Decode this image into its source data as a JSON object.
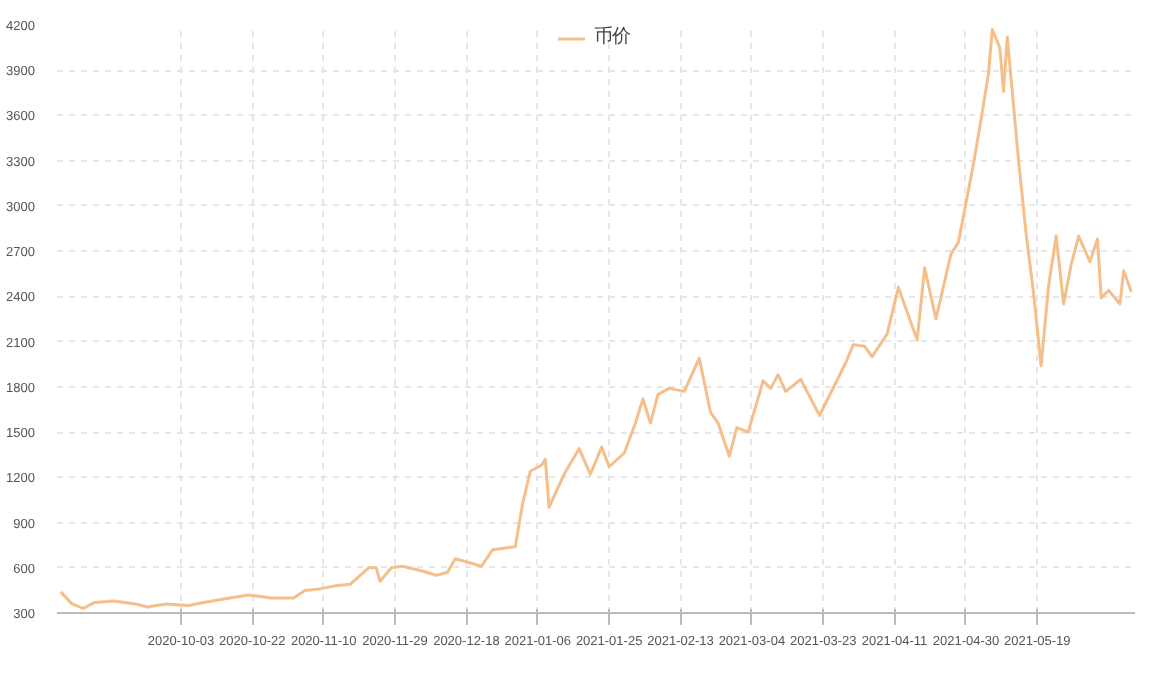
{
  "chart_data": {
    "type": "line",
    "legend": "top",
    "grid": true,
    "x": [
      "2020-09-01",
      "2020-09-04",
      "2020-09-07",
      "2020-09-10",
      "2020-09-15",
      "2020-09-18",
      "2020-09-21",
      "2020-09-24",
      "2020-09-29",
      "2020-10-05",
      "2020-10-09",
      "2020-10-16",
      "2020-10-21",
      "2020-10-27",
      "2020-11-02",
      "2020-11-05",
      "2020-11-09",
      "2020-11-13",
      "2020-11-17",
      "2020-11-22",
      "2020-11-24",
      "2020-11-25",
      "2020-11-28",
      "2020-12-01",
      "2020-12-06",
      "2020-12-10",
      "2020-12-13",
      "2020-12-15",
      "2020-12-18",
      "2020-12-22",
      "2020-12-25",
      "2020-12-31",
      "2021-01-02",
      "2021-01-04",
      "2021-01-07",
      "2021-01-08",
      "2021-01-09",
      "2021-01-13",
      "2021-01-17",
      "2021-01-20",
      "2021-01-23",
      "2021-01-25",
      "2021-01-29",
      "2021-02-01",
      "2021-02-03",
      "2021-02-05",
      "2021-02-07",
      "2021-02-10",
      "2021-02-14",
      "2021-02-18",
      "2021-02-21",
      "2021-02-23",
      "2021-02-26",
      "2021-02-28",
      "2021-03-03",
      "2021-03-07",
      "2021-03-09",
      "2021-03-11",
      "2021-03-13",
      "2021-03-17",
      "2021-03-22",
      "2021-03-29",
      "2021-03-31",
      "2021-04-03",
      "2021-04-05",
      "2021-04-09",
      "2021-04-12",
      "2021-04-17",
      "2021-04-19",
      "2021-04-22",
      "2021-04-26",
      "2021-04-28",
      "2021-05-02",
      "2021-05-04",
      "2021-05-06",
      "2021-05-07",
      "2021-05-09",
      "2021-05-10",
      "2021-05-11",
      "2021-05-14",
      "2021-05-16",
      "2021-05-18",
      "2021-05-20",
      "2021-05-22",
      "2021-05-24",
      "2021-05-26",
      "2021-05-28",
      "2021-05-30",
      "2021-06-02",
      "2021-06-04",
      "2021-06-05",
      "2021-06-07",
      "2021-06-10",
      "2021-06-11",
      "2021-06-13"
    ],
    "series": [
      {
        "name": "币价",
        "color": "#f5bf8c",
        "values": [
          440,
          360,
          330,
          370,
          380,
          370,
          360,
          340,
          360,
          350,
          370,
          400,
          420,
          400,
          400,
          450,
          460,
          480,
          490,
          600,
          600,
          510,
          600,
          610,
          580,
          550,
          570,
          660,
          640,
          610,
          720,
          740,
          1030,
          1240,
          1280,
          1320,
          1000,
          1220,
          1390,
          1220,
          1400,
          1270,
          1360,
          1560,
          1720,
          1560,
          1750,
          1790,
          1770,
          1990,
          1630,
          1560,
          1340,
          1530,
          1500,
          1840,
          1790,
          1880,
          1770,
          1850,
          1610,
          1960,
          2080,
          2070,
          2000,
          2150,
          2460,
          2110,
          2590,
          2250,
          2680,
          2760,
          3280,
          3570,
          3880,
          4170,
          4050,
          3760,
          4120,
          3300,
          2820,
          2420,
          1940,
          2470,
          2800,
          2350,
          2610,
          2800,
          2630,
          2780,
          2390,
          2440,
          2350,
          2570,
          2430
        ]
      }
    ],
    "xlim": [
      "2020-08-31",
      "2021-06-14"
    ],
    "xticks": [
      "2020-10-03",
      "2020-10-22",
      "2020-11-10",
      "2020-11-29",
      "2020-12-18",
      "2021-01-06",
      "2021-01-25",
      "2021-02-13",
      "2021-03-04",
      "2021-03-23",
      "2021-04-11",
      "2021-04-30",
      "2021-05-19"
    ],
    "ylim": [
      300,
      4200
    ],
    "yticks": [
      300,
      600,
      900,
      1200,
      1500,
      1800,
      2100,
      2400,
      2700,
      3000,
      3300,
      3600,
      3900,
      4200
    ]
  }
}
